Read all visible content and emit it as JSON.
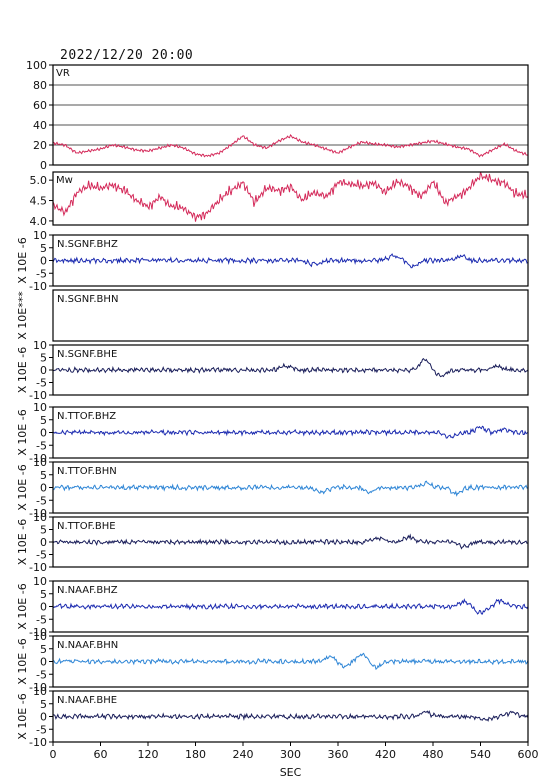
{
  "timestamp": "2022/12/20 20:00",
  "chart_data": {
    "type": "line",
    "xlabel": "SEC",
    "xlim": [
      0,
      600
    ],
    "xticks": [
      0,
      60,
      120,
      180,
      240,
      300,
      360,
      420,
      480,
      540,
      600
    ],
    "panels": [
      {
        "id": "vr",
        "label": "VR",
        "ylim": [
          0,
          100
        ],
        "yticks": [
          0,
          20,
          40,
          60,
          80,
          100
        ],
        "grid": true,
        "color": "#d42a5a",
        "series": [
          {
            "x": 0,
            "y": 22
          },
          {
            "x": 15,
            "y": 20
          },
          {
            "x": 30,
            "y": 12
          },
          {
            "x": 45,
            "y": 14
          },
          {
            "x": 60,
            "y": 16
          },
          {
            "x": 75,
            "y": 20
          },
          {
            "x": 90,
            "y": 18
          },
          {
            "x": 105,
            "y": 15
          },
          {
            "x": 120,
            "y": 14
          },
          {
            "x": 135,
            "y": 17
          },
          {
            "x": 150,
            "y": 20
          },
          {
            "x": 165,
            "y": 17
          },
          {
            "x": 180,
            "y": 11
          },
          {
            "x": 195,
            "y": 9
          },
          {
            "x": 210,
            "y": 12
          },
          {
            "x": 225,
            "y": 20
          },
          {
            "x": 240,
            "y": 29
          },
          {
            "x": 255,
            "y": 20
          },
          {
            "x": 270,
            "y": 17
          },
          {
            "x": 285,
            "y": 24
          },
          {
            "x": 300,
            "y": 29
          },
          {
            "x": 315,
            "y": 23
          },
          {
            "x": 330,
            "y": 20
          },
          {
            "x": 345,
            "y": 16
          },
          {
            "x": 360,
            "y": 12
          },
          {
            "x": 375,
            "y": 18
          },
          {
            "x": 390,
            "y": 23
          },
          {
            "x": 405,
            "y": 21
          },
          {
            "x": 420,
            "y": 20
          },
          {
            "x": 435,
            "y": 18
          },
          {
            "x": 450,
            "y": 20
          },
          {
            "x": 465,
            "y": 22
          },
          {
            "x": 480,
            "y": 24
          },
          {
            "x": 495,
            "y": 21
          },
          {
            "x": 510,
            "y": 18
          },
          {
            "x": 525,
            "y": 16
          },
          {
            "x": 540,
            "y": 9
          },
          {
            "x": 555,
            "y": 15
          },
          {
            "x": 570,
            "y": 21
          },
          {
            "x": 585,
            "y": 14
          },
          {
            "x": 600,
            "y": 10
          }
        ]
      },
      {
        "id": "mw",
        "label": "Mw",
        "ylim": [
          3.9,
          5.2
        ],
        "yticks": [
          4.0,
          4.5,
          5.0
        ],
        "grid": false,
        "color": "#d42a5a",
        "series": [
          {
            "x": 0,
            "y": 4.4
          },
          {
            "x": 15,
            "y": 4.2
          },
          {
            "x": 30,
            "y": 4.7
          },
          {
            "x": 45,
            "y": 4.85
          },
          {
            "x": 60,
            "y": 4.8
          },
          {
            "x": 75,
            "y": 4.9
          },
          {
            "x": 90,
            "y": 4.75
          },
          {
            "x": 105,
            "y": 4.5
          },
          {
            "x": 120,
            "y": 4.35
          },
          {
            "x": 135,
            "y": 4.6
          },
          {
            "x": 150,
            "y": 4.35
          },
          {
            "x": 165,
            "y": 4.3
          },
          {
            "x": 180,
            "y": 4.1
          },
          {
            "x": 195,
            "y": 4.2
          },
          {
            "x": 210,
            "y": 4.5
          },
          {
            "x": 225,
            "y": 4.75
          },
          {
            "x": 240,
            "y": 4.95
          },
          {
            "x": 255,
            "y": 4.45
          },
          {
            "x": 270,
            "y": 4.8
          },
          {
            "x": 285,
            "y": 4.75
          },
          {
            "x": 300,
            "y": 4.85
          },
          {
            "x": 315,
            "y": 4.5
          },
          {
            "x": 330,
            "y": 4.7
          },
          {
            "x": 345,
            "y": 4.6
          },
          {
            "x": 360,
            "y": 4.95
          },
          {
            "x": 375,
            "y": 4.9
          },
          {
            "x": 390,
            "y": 4.85
          },
          {
            "x": 405,
            "y": 4.95
          },
          {
            "x": 420,
            "y": 4.7
          },
          {
            "x": 435,
            "y": 4.95
          },
          {
            "x": 450,
            "y": 4.85
          },
          {
            "x": 465,
            "y": 4.6
          },
          {
            "x": 480,
            "y": 4.95
          },
          {
            "x": 495,
            "y": 4.45
          },
          {
            "x": 510,
            "y": 4.6
          },
          {
            "x": 525,
            "y": 4.8
          },
          {
            "x": 540,
            "y": 5.1
          },
          {
            "x": 555,
            "y": 5.0
          },
          {
            "x": 570,
            "y": 4.95
          },
          {
            "x": 585,
            "y": 4.65
          },
          {
            "x": 600,
            "y": 4.6
          }
        ]
      }
    ],
    "waveforms": [
      {
        "id": "sgnf-bhz",
        "label": "N.SGNF.BHZ",
        "ylabel": "X 10E -6",
        "ylim": [
          -10,
          10
        ],
        "yticks": [
          -10,
          -5,
          0,
          5,
          10
        ],
        "color": "#1c2bb0",
        "has_data": true,
        "bumps": [
          [
            330,
            -1.5
          ],
          [
            430,
            1.8
          ],
          [
            455,
            -2.2
          ],
          [
            515,
            1.8
          ]
        ]
      },
      {
        "id": "sgnf-bhn",
        "label": "N.SGNF.BHN",
        "ylabel": "X 10E***",
        "ylim": [
          -10,
          10
        ],
        "yticks": [],
        "color": "#1c2bb0",
        "has_data": false,
        "bumps": []
      },
      {
        "id": "sgnf-bhe",
        "label": "N.SGNF.BHE",
        "ylabel": "X 10E -6",
        "ylim": [
          -10,
          10
        ],
        "yticks": [
          -10,
          -5,
          0,
          5,
          10
        ],
        "color": "#1a1e5a",
        "has_data": true,
        "bumps": [
          [
            295,
            1.8
          ],
          [
            470,
            4.0
          ],
          [
            490,
            -2.5
          ],
          [
            560,
            1.5
          ]
        ]
      },
      {
        "id": "ttof-bhz",
        "label": "N.TTOF.BHZ",
        "ylabel": "X 10E -6",
        "ylim": [
          -10,
          10
        ],
        "yticks": [
          -10,
          -5,
          0,
          5,
          10
        ],
        "color": "#1c2bb0",
        "has_data": true,
        "bumps": [
          [
            500,
            -2.0
          ],
          [
            540,
            2.0
          ],
          [
            570,
            1.2
          ]
        ]
      },
      {
        "id": "ttof-bhn",
        "label": "N.TTOF.BHN",
        "ylabel": "X 10E -6",
        "ylim": [
          -10,
          10
        ],
        "yticks": [
          -10,
          -5,
          0,
          5,
          10
        ],
        "color": "#2f86d6",
        "has_data": true,
        "bumps": [
          [
            340,
            -2.0
          ],
          [
            400,
            -1.8
          ],
          [
            470,
            1.6
          ],
          [
            510,
            -2.4
          ]
        ]
      },
      {
        "id": "ttof-bhe",
        "label": "N.TTOF.BHE",
        "ylabel": "X 10E -6",
        "ylim": [
          -10,
          10
        ],
        "yticks": [
          -10,
          -5,
          0,
          5,
          10
        ],
        "color": "#1a1e5a",
        "has_data": true,
        "bumps": [
          [
            410,
            1.5
          ],
          [
            450,
            2.0
          ],
          [
            520,
            -2.0
          ]
        ]
      },
      {
        "id": "naaf-bhz",
        "label": "N.NAAF.BHZ",
        "ylabel": "X 10E -6",
        "ylim": [
          -10,
          10
        ],
        "yticks": [
          -10,
          -5,
          0,
          5,
          10
        ],
        "color": "#1c2bb0",
        "has_data": true,
        "bumps": [
          [
            520,
            1.8
          ],
          [
            540,
            -2.4
          ],
          [
            565,
            2.2
          ]
        ]
      },
      {
        "id": "naaf-bhn",
        "label": "N.NAAF.BHN",
        "ylabel": "X 10E -6",
        "ylim": [
          -10,
          10
        ],
        "yticks": [
          -10,
          -5,
          0,
          5,
          10
        ],
        "color": "#2f86d6",
        "has_data": true,
        "bumps": [
          [
            350,
            2.0
          ],
          [
            368,
            -1.8
          ],
          [
            390,
            2.8
          ],
          [
            408,
            -2.4
          ]
        ]
      },
      {
        "id": "naaf-bhe",
        "label": "N.NAAF.BHE",
        "ylabel": "X 10E -6",
        "ylim": [
          -10,
          10
        ],
        "yticks": [
          -10,
          -5,
          0,
          5,
          10
        ],
        "color": "#1a1e5a",
        "has_data": true,
        "bumps": [
          [
            470,
            1.6
          ],
          [
            545,
            -1.5
          ],
          [
            580,
            1.5
          ]
        ]
      }
    ]
  }
}
